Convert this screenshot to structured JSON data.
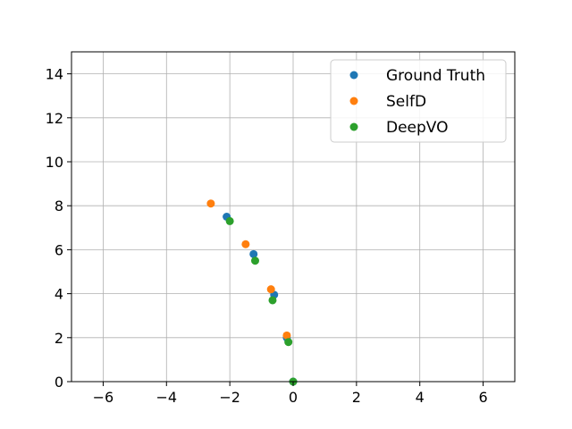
{
  "chart_data": {
    "type": "scatter",
    "title": "",
    "xlabel": "",
    "ylabel": "",
    "xlim": [
      -7,
      7
    ],
    "ylim": [
      0,
      15
    ],
    "grid": true,
    "legend_position": "top-right",
    "x_ticks": [
      -6,
      -4,
      -2,
      0,
      2,
      4,
      6
    ],
    "y_ticks": [
      0,
      2,
      4,
      6,
      8,
      10,
      12,
      14
    ],
    "x_tick_labels": [
      "−6",
      "−4",
      "−2",
      "0",
      "2",
      "4",
      "6"
    ],
    "y_tick_labels": [
      "0",
      "2",
      "4",
      "6",
      "8",
      "10",
      "12",
      "14"
    ],
    "series": [
      {
        "name": "Ground Truth",
        "color": "#1f77b4",
        "points": [
          [
            0.0,
            0.0
          ],
          [
            -0.2,
            2.0
          ],
          [
            -0.6,
            3.95
          ],
          [
            -1.25,
            5.8
          ],
          [
            -2.1,
            7.5
          ]
        ]
      },
      {
        "name": "SelfD",
        "color": "#ff7f0e",
        "points": [
          [
            -0.2,
            2.1
          ],
          [
            -0.7,
            4.2
          ],
          [
            -1.5,
            6.25
          ],
          [
            -2.6,
            8.1
          ]
        ]
      },
      {
        "name": "DeepVO",
        "color": "#2ca02c",
        "points": [
          [
            0.0,
            0.0
          ],
          [
            -0.15,
            1.8
          ],
          [
            -0.65,
            3.7
          ],
          [
            -1.2,
            5.5
          ],
          [
            -2.0,
            7.3
          ]
        ]
      }
    ]
  }
}
